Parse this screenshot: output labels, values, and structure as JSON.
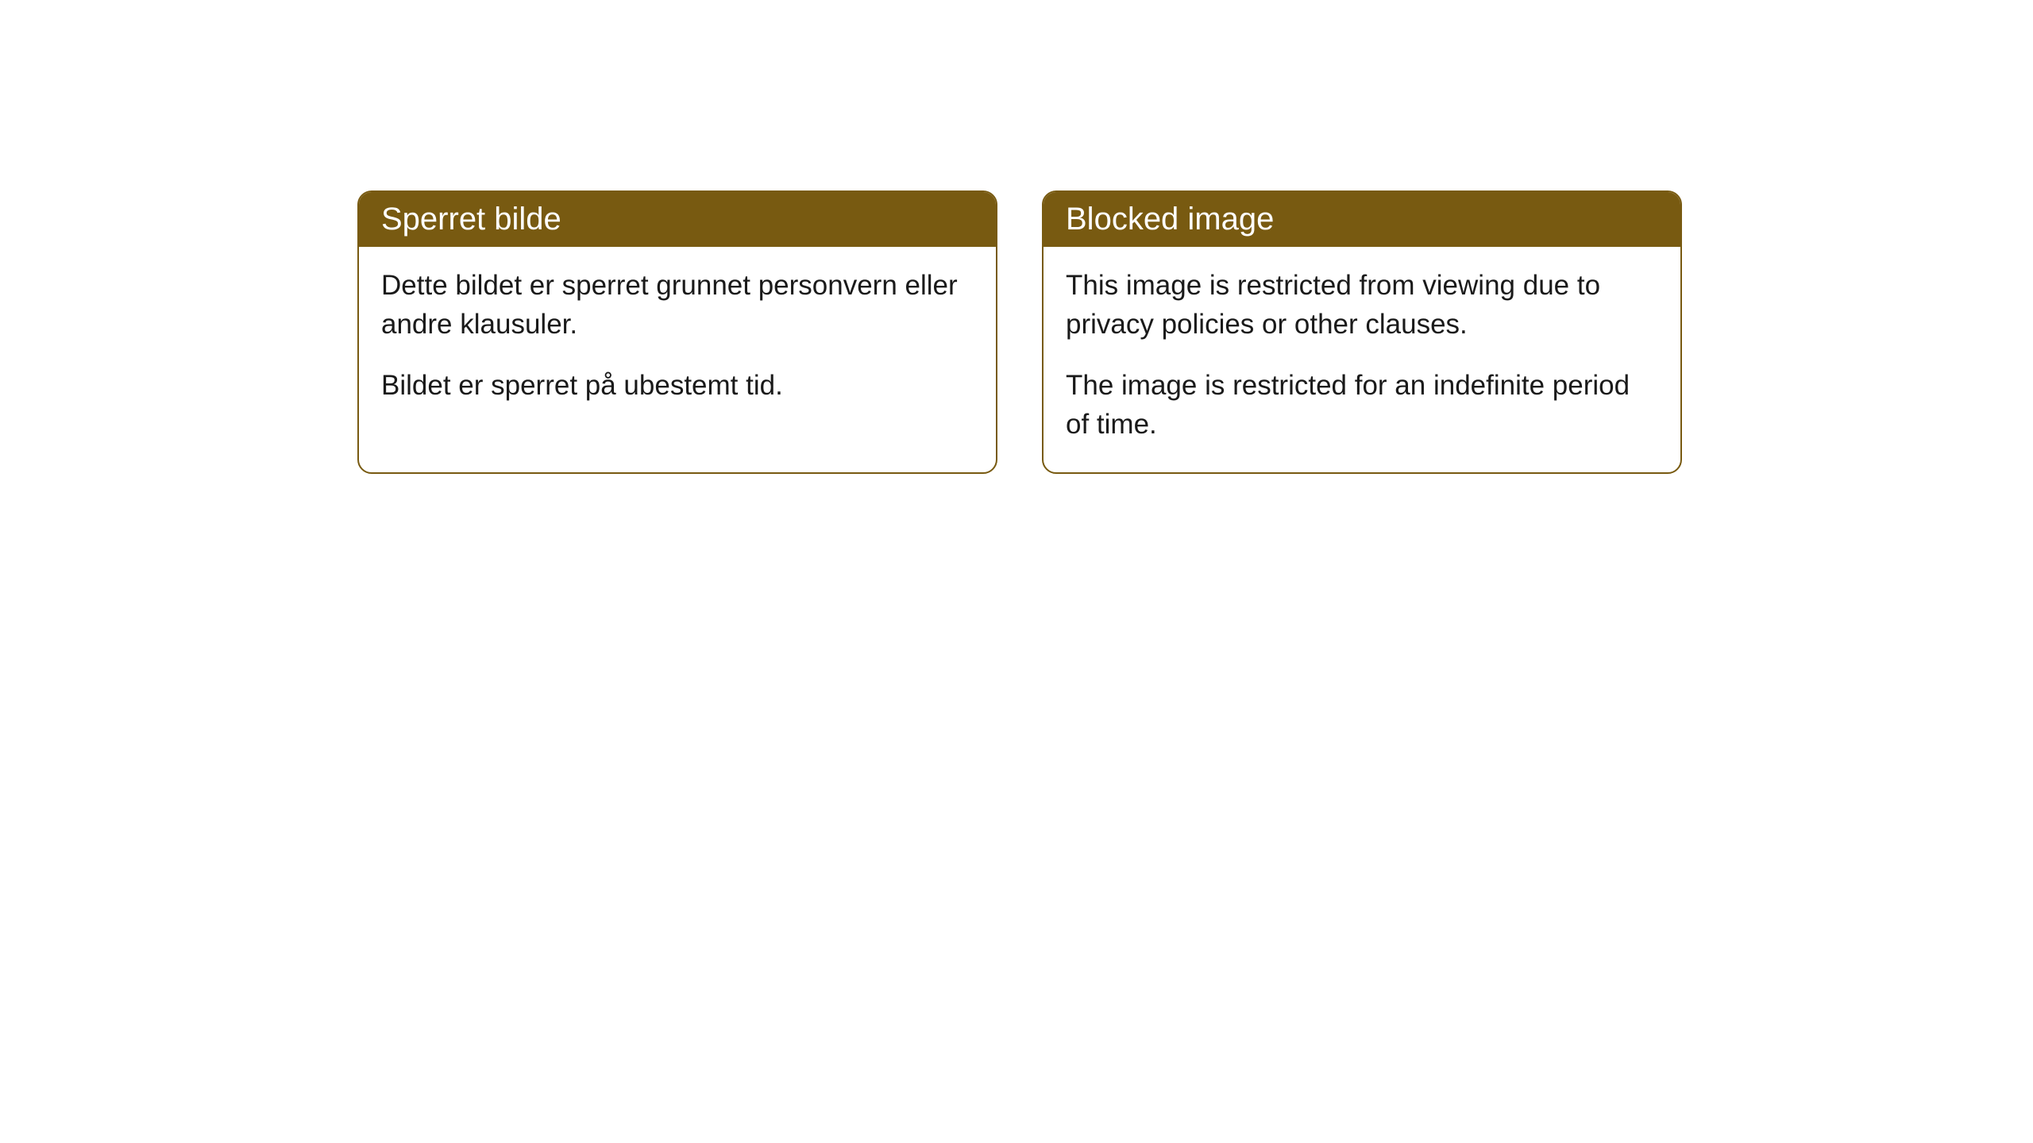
{
  "cards": [
    {
      "title": "Sperret bilde",
      "paragraph1": "Dette bildet er sperret grunnet personvern eller andre klausuler.",
      "paragraph2": "Bildet er sperret på ubestemt tid."
    },
    {
      "title": "Blocked image",
      "paragraph1": "This image is restricted from viewing due to privacy policies or other clauses.",
      "paragraph2": "The image is restricted for an indefinite period of time."
    }
  ],
  "styling": {
    "header_background": "#785a11",
    "header_text_color": "#ffffff",
    "border_color": "#785a11",
    "body_background": "#ffffff",
    "body_text_color": "#1a1a1a",
    "border_radius": 18,
    "header_fontsize": 40,
    "body_fontsize": 35
  }
}
